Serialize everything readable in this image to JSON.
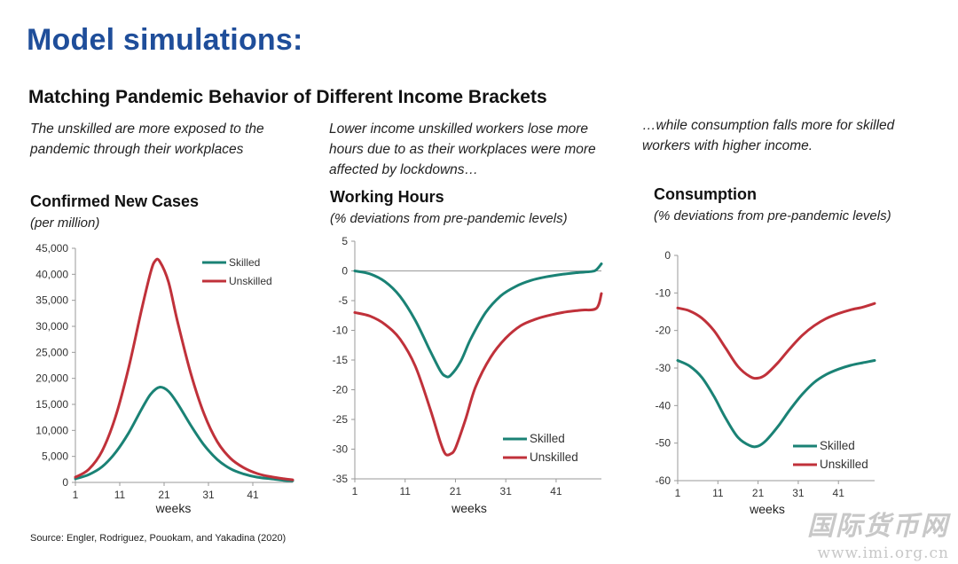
{
  "page": {
    "title": "Model simulations:",
    "subtitle": "Matching Pandemic Behavior of Different Income Brackets",
    "source": "Source:  Engler, Rodriguez, Pouokam, and Yakadina (2020)",
    "watermark": {
      "text": "国际货币网",
      "url": "www.imi.org.cn"
    }
  },
  "panels": [
    {
      "caption_lines": [
        "The unskilled are more exposed to the",
        "pandemic through their workplaces"
      ],
      "chart_title": "Confirmed New Cases",
      "chart_subtitle": "(per million)"
    },
    {
      "caption_lines": [
        "Lower income unskilled workers lose more",
        "hours due to as their workplaces were more",
        "affected by lockdowns…"
      ],
      "chart_title": "Working Hours",
      "chart_subtitle": "(% deviations from pre-pandemic levels)"
    },
    {
      "caption_lines": [
        "…while consumption falls more for skilled",
        "workers with higher income."
      ],
      "chart_title": "Consumption",
      "chart_subtitle": "(% deviations from pre-pandemic levels)"
    }
  ],
  "colors": {
    "skilled": "#1a8275",
    "unskilled": "#c0313a",
    "title": "#1f4e9a"
  },
  "chart_data": [
    {
      "type": "line",
      "title": "Confirmed New Cases",
      "subtitle": "(per million)",
      "xlabel": "weeks",
      "ylabel": "",
      "xlim": [
        1,
        50
      ],
      "ylim": [
        0,
        45000
      ],
      "x_ticks": [
        "1",
        "11",
        "21",
        "31",
        "41"
      ],
      "y_ticks": [
        "0",
        "5,000",
        "10,000",
        "15,000",
        "20,000",
        "25,000",
        "30,000",
        "35,000",
        "40,000",
        "45,000"
      ],
      "legend": [
        "Skilled",
        "Unskilled"
      ],
      "legend_position": "top-right",
      "series": [
        {
          "name": "Skilled",
          "x": [
            1,
            4,
            7,
            10,
            13,
            16,
            18,
            20,
            22,
            24,
            27,
            30,
            33,
            36,
            39,
            42,
            45,
            48,
            50
          ],
          "values": [
            700,
            1500,
            3000,
            5700,
            9500,
            14200,
            17000,
            18300,
            17500,
            15200,
            11000,
            7200,
            4400,
            2600,
            1600,
            1000,
            700,
            400,
            300
          ]
        },
        {
          "name": "Unskilled",
          "x": [
            1,
            4,
            7,
            10,
            13,
            16,
            18,
            19,
            20,
            22,
            24,
            27,
            30,
            33,
            36,
            39,
            42,
            45,
            48,
            50
          ],
          "values": [
            1000,
            2500,
            6000,
            12500,
            22000,
            33500,
            40500,
            42600,
            42500,
            38500,
            31000,
            21000,
            13200,
            7800,
            4600,
            2800,
            1700,
            1100,
            700,
            500
          ]
        }
      ]
    },
    {
      "type": "line",
      "title": "Working Hours",
      "subtitle": "(% deviations from pre-pandemic levels)",
      "xlabel": "weeks",
      "ylabel": "",
      "xlim": [
        1,
        50
      ],
      "ylim": [
        -35,
        5
      ],
      "x_ticks": [
        "1",
        "11",
        "21",
        "31",
        "41"
      ],
      "y_ticks": [
        "5",
        "0",
        "-5",
        "-10",
        "-15",
        "-20",
        "-25",
        "-30",
        "-35"
      ],
      "legend": [
        "Skilled",
        "Unskilled"
      ],
      "legend_position": "bottom-right",
      "series": [
        {
          "name": "Skilled",
          "x": [
            1,
            4,
            7,
            10,
            13,
            16,
            18,
            19,
            20,
            22,
            24,
            27,
            30,
            33,
            36,
            39,
            42,
            45,
            48,
            49,
            50
          ],
          "values": [
            0,
            -0.5,
            -1.8,
            -4.3,
            -8.3,
            -13.5,
            -16.8,
            -17.7,
            -17.6,
            -15.3,
            -11.5,
            -7,
            -4.2,
            -2.6,
            -1.6,
            -1,
            -0.6,
            -0.3,
            -0.1,
            0.2,
            1.2
          ]
        },
        {
          "name": "Unskilled",
          "x": [
            1,
            4,
            7,
            10,
            13,
            16,
            18,
            19,
            20,
            21,
            23,
            25,
            28,
            31,
            34,
            37,
            40,
            43,
            46,
            49,
            50
          ],
          "values": [
            -7,
            -7.6,
            -9,
            -11.5,
            -16,
            -23.3,
            -28.8,
            -30.8,
            -30.8,
            -29.8,
            -25,
            -19.5,
            -14.5,
            -11.3,
            -9.2,
            -8.1,
            -7.4,
            -6.9,
            -6.6,
            -6.3,
            -3.8
          ]
        }
      ]
    },
    {
      "type": "line",
      "title": "Consumption",
      "subtitle": "(% deviations from pre-pandemic levels)",
      "xlabel": "weeks",
      "ylabel": "",
      "xlim": [
        1,
        50
      ],
      "ylim": [
        -60,
        0
      ],
      "x_ticks": [
        "1",
        "11",
        "21",
        "31",
        "41"
      ],
      "y_ticks": [
        "0",
        "-10",
        "-20",
        "-30",
        "-40",
        "-50",
        "-60"
      ],
      "legend": [
        "Skilled",
        "Unskilled"
      ],
      "legend_position": "bottom-right",
      "series": [
        {
          "name": "Skilled",
          "x": [
            1,
            4,
            7,
            10,
            13,
            16,
            19,
            21,
            23,
            26,
            29,
            32,
            35,
            38,
            41,
            44,
            47,
            50
          ],
          "values": [
            -28,
            -29.5,
            -32.5,
            -37.5,
            -43.5,
            -48.5,
            -50.7,
            -50.8,
            -49.3,
            -45.5,
            -41,
            -37,
            -33.8,
            -31.7,
            -30.3,
            -29.3,
            -28.6,
            -28
          ]
        },
        {
          "name": "Unskilled",
          "x": [
            1,
            4,
            7,
            10,
            13,
            16,
            19,
            21,
            23,
            26,
            29,
            32,
            35,
            38,
            41,
            44,
            47,
            50
          ],
          "values": [
            -14,
            -14.8,
            -16.7,
            -20,
            -24.8,
            -29.6,
            -32.3,
            -32.7,
            -31.7,
            -28.5,
            -24.7,
            -21.3,
            -18.7,
            -16.8,
            -15.5,
            -14.5,
            -13.8,
            -12.8
          ]
        }
      ]
    }
  ]
}
